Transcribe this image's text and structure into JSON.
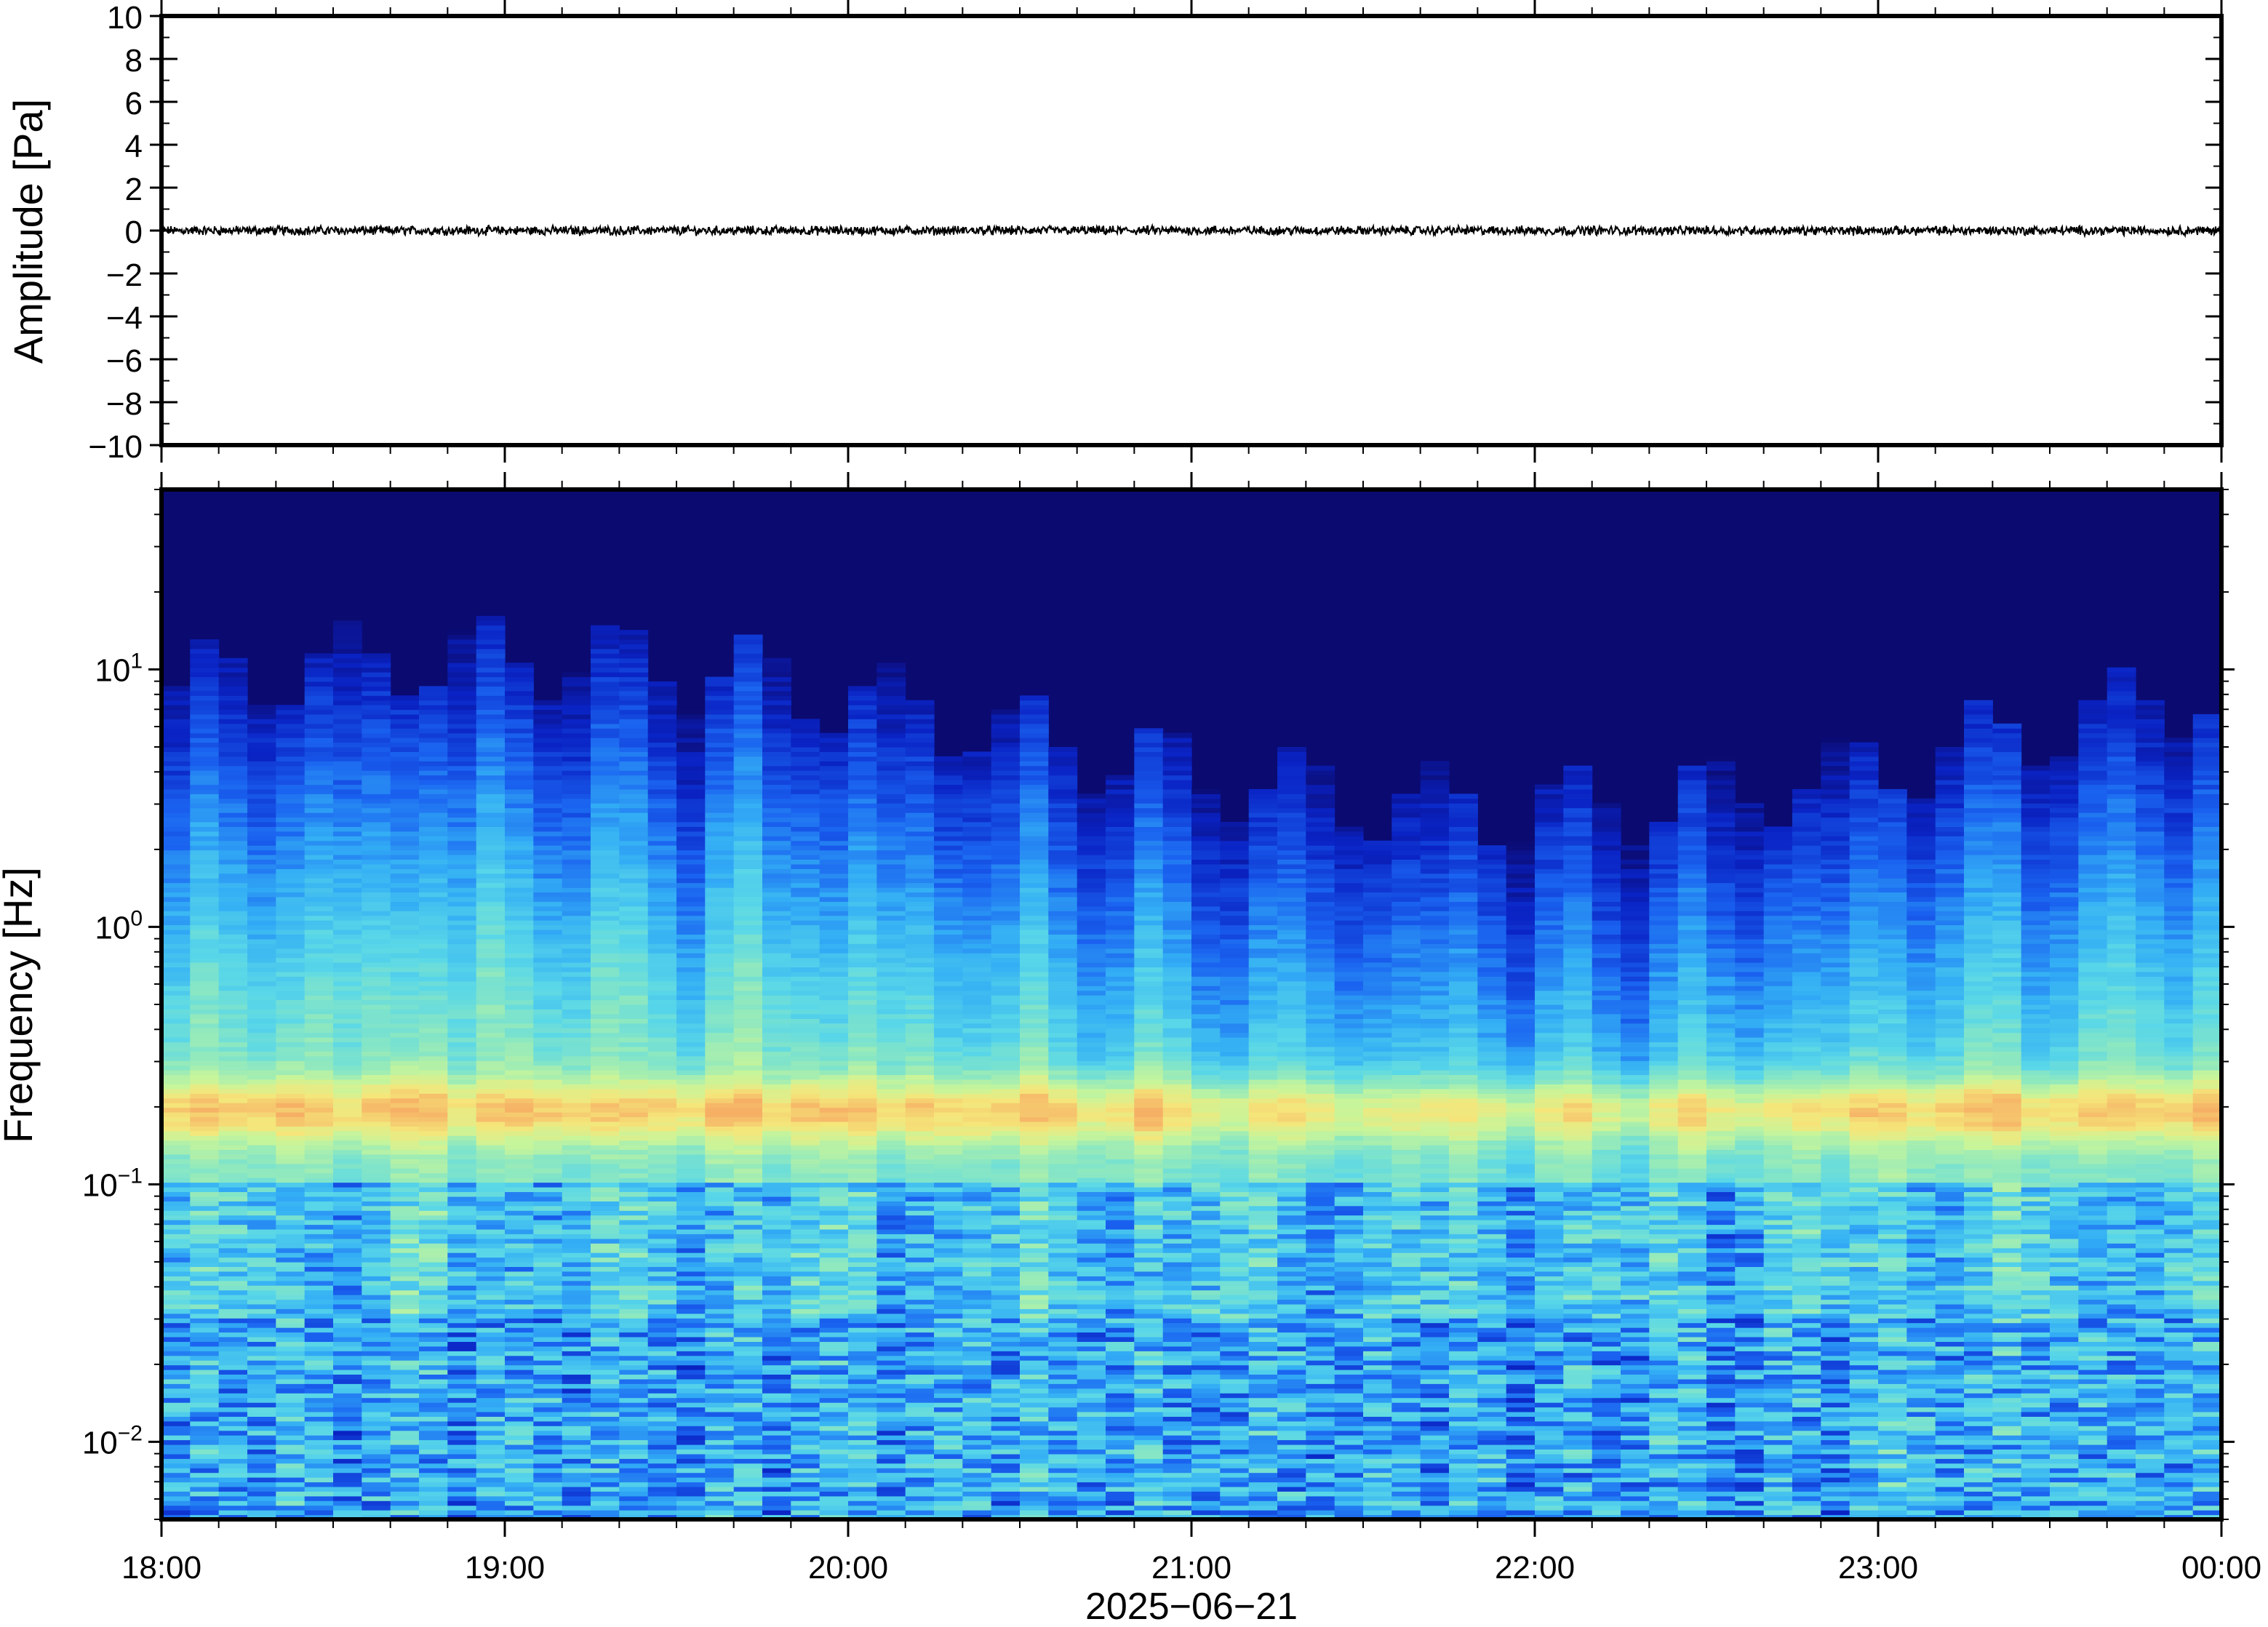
{
  "chart_data": [
    {
      "type": "line",
      "ylabel": "Amplitude [Pa]",
      "ylim": [
        -10,
        10
      ],
      "yticks": [
        10,
        8,
        6,
        4,
        2,
        0,
        -2,
        -4,
        -6,
        -8,
        -10
      ],
      "ytick_labels": [
        "10",
        "8",
        "6",
        "4",
        "2",
        "0",
        "−2",
        "−4",
        "−6",
        "−8",
        "−10"
      ],
      "series": [
        {
          "values_approx": "near-constant pressure trace around 0 Pa with small fluctuations (about ±0.3 Pa) for the whole 18:00–00:00 window"
        }
      ],
      "y_value": 0,
      "grid": false
    },
    {
      "type": "heatmap",
      "ylabel": "Frequency [Hz]",
      "xlabel": "2025−06−21",
      "y_scale": "log",
      "ylim": [
        0.005,
        50
      ],
      "y_ticks": [
        {
          "base": "10",
          "exp": "1"
        },
        {
          "base": "10",
          "exp": "0"
        },
        {
          "base": "10",
          "exp": "−1"
        },
        {
          "base": "10",
          "exp": "−2"
        }
      ],
      "x_ticks": [
        "18:00",
        "19:00",
        "20:00",
        "21:00",
        "22:00",
        "23:00",
        "00:00"
      ],
      "xlim": [
        "2025-06-21T18:00",
        "2025-06-22T00:00"
      ],
      "colormap": [
        "#0b0a70",
        "#0a23c4",
        "#1a62f0",
        "#33aef5",
        "#59d7e8",
        "#8de8c0",
        "#c8f59a",
        "#f5e67a",
        "#f6b065"
      ],
      "features": {
        "microbarom_band_hz": [
          0.15,
          0.25
        ],
        "microbarom_peak_color": "#f6b065",
        "high_frequency_cutoff_hz_range": [
          2,
          14
        ]
      },
      "grid": false
    }
  ]
}
